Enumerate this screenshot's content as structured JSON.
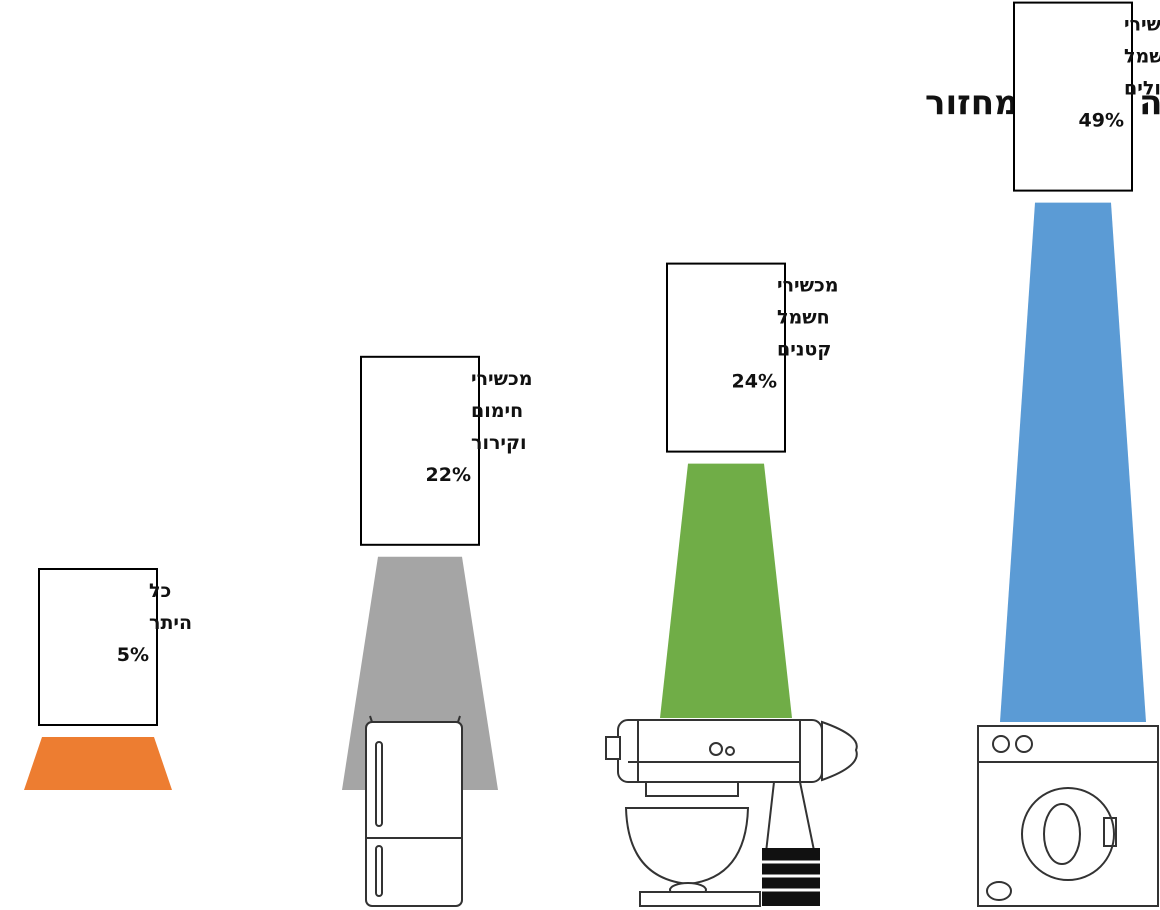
{
  "chart_data": {
    "type": "bar",
    "title": "חלקה של כל קבוצת מוצרים לעמידה ביעד המחזור",
    "unit": "%",
    "series": [
      {
        "values": [
          49,
          24,
          22,
          5
        ],
        "label_lines": [
          [
            "מכשירי",
            "חשמל",
            "גדולים"
          ],
          [
            "מכשירי",
            "חשמל",
            "קטנים"
          ],
          [
            "מכשירי",
            "חימום",
            "וקירור"
          ],
          [
            "כל",
            "היתר"
          ]
        ],
        "value_labels": [
          "49%",
          "24%",
          "22%",
          "5%"
        ],
        "colors": [
          "#5b9bd5",
          "#70ad47",
          "#a5a5a5",
          "#ed7d31"
        ],
        "icons": [
          "washing-machine-icon",
          "stand-mixer-icon",
          "refrigerator-icon",
          ""
        ]
      }
    ]
  }
}
